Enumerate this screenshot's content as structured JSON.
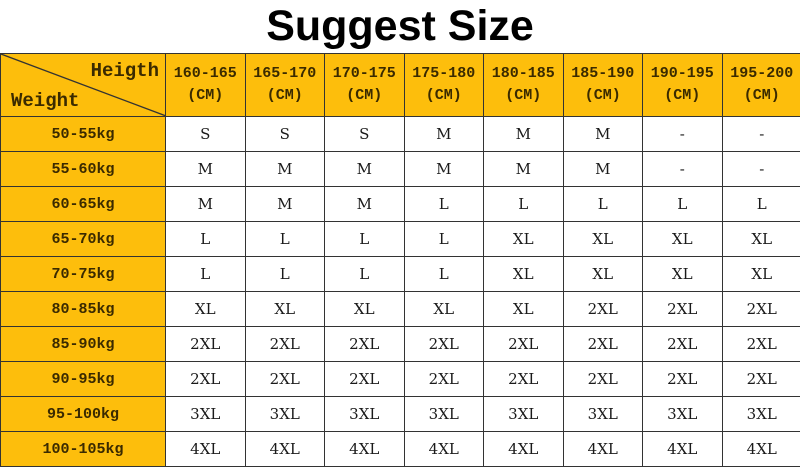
{
  "title": "Suggest Size",
  "header": {
    "height_label": "Heigth",
    "weight_label": "Weight",
    "columns": [
      {
        "range": "160-165",
        "unit": "(CM)"
      },
      {
        "range": "165-170",
        "unit": "(CM)"
      },
      {
        "range": "170-175",
        "unit": "(CM)"
      },
      {
        "range": "175-180",
        "unit": "(CM)"
      },
      {
        "range": "180-185",
        "unit": "(CM)"
      },
      {
        "range": "185-190",
        "unit": "(CM)"
      },
      {
        "range": "190-195",
        "unit": "(CM)"
      },
      {
        "range": "195-200",
        "unit": "(CM)"
      }
    ]
  },
  "rows": [
    {
      "weight": "50-55kg",
      "sizes": [
        "S",
        "S",
        "S",
        "M",
        "M",
        "M",
        "-",
        "-"
      ]
    },
    {
      "weight": "55-60kg",
      "sizes": [
        "M",
        "M",
        "M",
        "M",
        "M",
        "M",
        "-",
        "-"
      ]
    },
    {
      "weight": "60-65kg",
      "sizes": [
        "M",
        "M",
        "M",
        "L",
        "L",
        "L",
        "L",
        "L"
      ]
    },
    {
      "weight": "65-70kg",
      "sizes": [
        "L",
        "L",
        "L",
        "L",
        "XL",
        "XL",
        "XL",
        "XL"
      ]
    },
    {
      "weight": "70-75kg",
      "sizes": [
        "L",
        "L",
        "L",
        "L",
        "XL",
        "XL",
        "XL",
        "XL"
      ]
    },
    {
      "weight": "80-85kg",
      "sizes": [
        "XL",
        "XL",
        "XL",
        "XL",
        "XL",
        "2XL",
        "2XL",
        "2XL"
      ]
    },
    {
      "weight": "85-90kg",
      "sizes": [
        "2XL",
        "2XL",
        "2XL",
        "2XL",
        "2XL",
        "2XL",
        "2XL",
        "2XL"
      ]
    },
    {
      "weight": "90-95kg",
      "sizes": [
        "2XL",
        "2XL",
        "2XL",
        "2XL",
        "2XL",
        "2XL",
        "2XL",
        "2XL"
      ]
    },
    {
      "weight": "95-100kg",
      "sizes": [
        "3XL",
        "3XL",
        "3XL",
        "3XL",
        "3XL",
        "3XL",
        "3XL",
        "3XL"
      ]
    },
    {
      "weight": "100-105kg",
      "sizes": [
        "4XL",
        "4XL",
        "4XL",
        "4XL",
        "4XL",
        "4XL",
        "4XL",
        "4XL"
      ]
    }
  ],
  "colors": {
    "header_bg": "#FDBE0C",
    "border": "#333333"
  }
}
